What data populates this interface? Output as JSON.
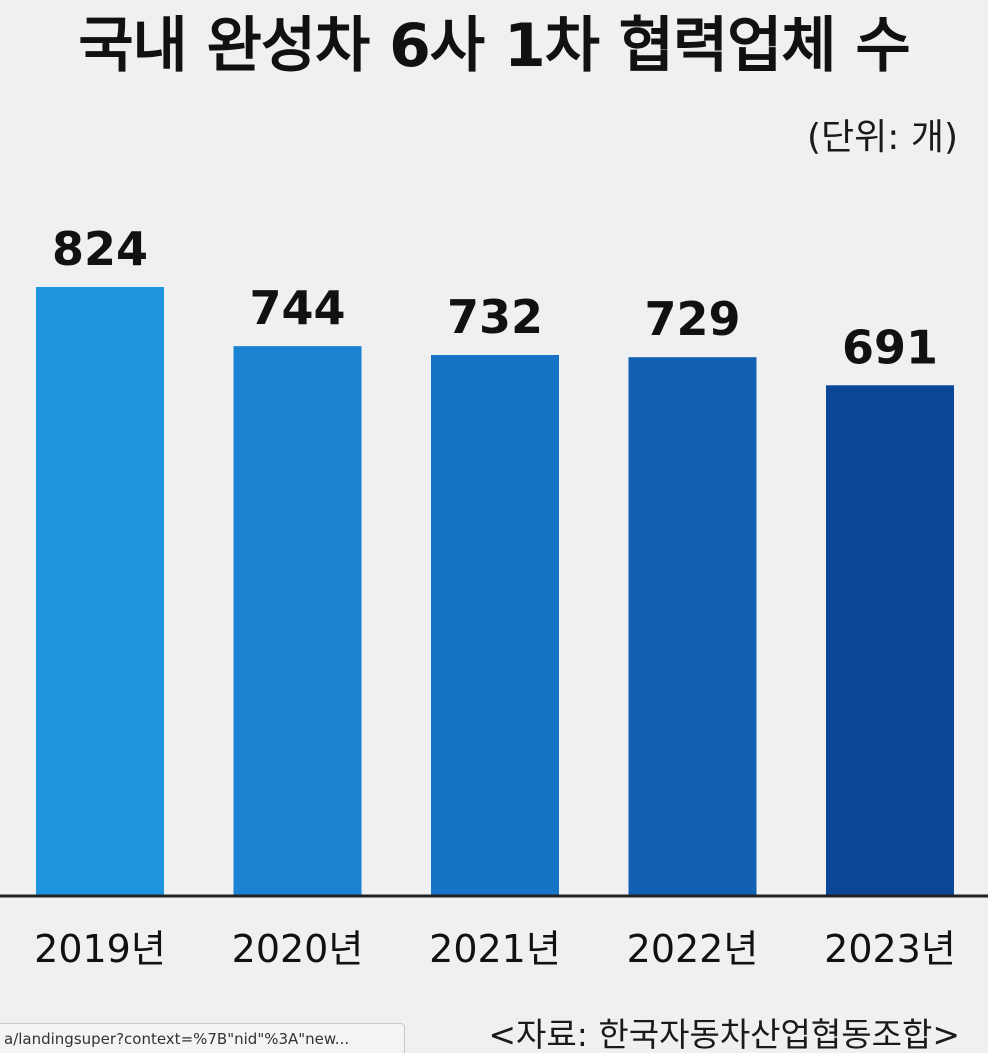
{
  "page": {
    "title": "국내 완성차 6사 1차 협력업체 수",
    "unit_label": "(단위: 개)",
    "source": "<자료: 한국자동차산업협동조합>",
    "status_url": "a/landingsuper?context=%7B\"nid\"%3A\"new..."
  },
  "chart_data": {
    "type": "bar",
    "title": "국내 완성차 6사 1차 협력업체 수",
    "unit": "(단위: 개)",
    "categories": [
      "2019년",
      "2020년",
      "2021년",
      "2022년",
      "2023년"
    ],
    "values": [
      824,
      744,
      732,
      729,
      691
    ],
    "value_labels": [
      "824",
      "744",
      "732",
      "729",
      "691"
    ],
    "colors": [
      "#1d96df",
      "#1a84d3",
      "#1673c5",
      "#1160b4",
      "#0b4697"
    ],
    "ylim": [
      0,
      824
    ],
    "grid": false,
    "legend": "none"
  }
}
